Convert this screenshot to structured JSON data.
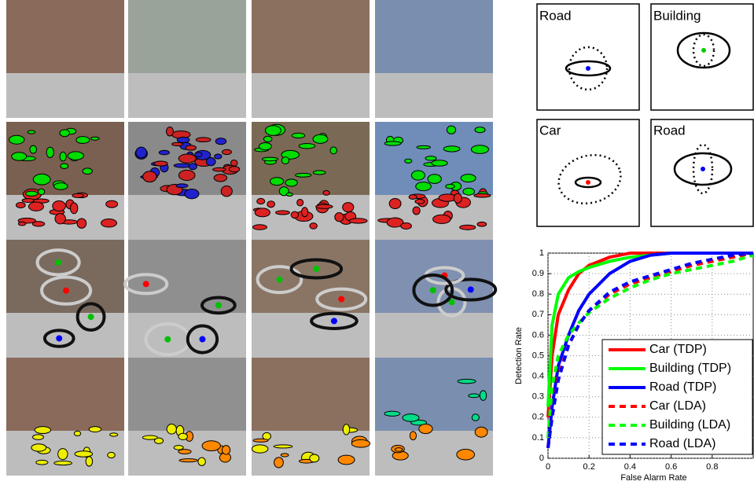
{
  "panels": [
    {
      "label": "Road"
    },
    {
      "label": "Building"
    },
    {
      "label": "Car"
    },
    {
      "label": "Road"
    }
  ],
  "chart_data": {
    "type": "line",
    "xlabel": "False Alarm Rate",
    "ylabel": "Detection Rate",
    "x": [
      0,
      0.02,
      0.05,
      0.1,
      0.15,
      0.2,
      0.3,
      0.4,
      0.5,
      0.6,
      0.7,
      0.8,
      0.9,
      1
    ],
    "series": [
      {
        "name": "Car (TDP)",
        "color": "#ff0000",
        "line_style": "solid",
        "values": [
          0.2,
          0.5,
          0.7,
          0.82,
          0.9,
          0.94,
          0.98,
          1,
          1,
          1,
          1,
          1,
          1,
          1
        ]
      },
      {
        "name": "Building (TDP)",
        "color": "#00ff00",
        "line_style": "solid",
        "values": [
          0.25,
          0.65,
          0.8,
          0.88,
          0.91,
          0.93,
          0.96,
          0.98,
          0.99,
          1,
          1,
          1,
          1,
          1
        ]
      },
      {
        "name": "Road (TDP)",
        "color": "#0000ff",
        "line_style": "solid",
        "values": [
          0.05,
          0.25,
          0.45,
          0.6,
          0.72,
          0.8,
          0.9,
          0.96,
          0.99,
          1,
          1,
          1,
          1,
          1
        ]
      },
      {
        "name": "Car (LDA)",
        "color": "#ff0000",
        "line_style": "dashed",
        "values": [
          0.05,
          0.2,
          0.4,
          0.55,
          0.65,
          0.72,
          0.8,
          0.85,
          0.88,
          0.91,
          0.94,
          0.96,
          0.98,
          1
        ]
      },
      {
        "name": "Building (LDA)",
        "color": "#00ff00",
        "line_style": "dashed",
        "values": [
          0.1,
          0.35,
          0.5,
          0.6,
          0.66,
          0.71,
          0.78,
          0.83,
          0.87,
          0.9,
          0.92,
          0.94,
          0.96,
          0.99
        ]
      },
      {
        "name": "Road (LDA)",
        "color": "#0000ff",
        "line_style": "dashed",
        "values": [
          0.05,
          0.2,
          0.38,
          0.55,
          0.65,
          0.72,
          0.81,
          0.86,
          0.89,
          0.92,
          0.95,
          0.97,
          0.99,
          1
        ]
      }
    ],
    "xlim": [
      0,
      1
    ],
    "ylim": [
      0,
      1
    ],
    "xticks": [
      0,
      0.2,
      0.4,
      0.6,
      0.8
    ],
    "yticks": [
      0,
      0.1,
      0.2,
      0.3,
      0.4,
      0.5,
      0.6,
      0.7,
      0.8,
      0.9,
      1
    ],
    "grid": true,
    "legend": "lower right"
  }
}
